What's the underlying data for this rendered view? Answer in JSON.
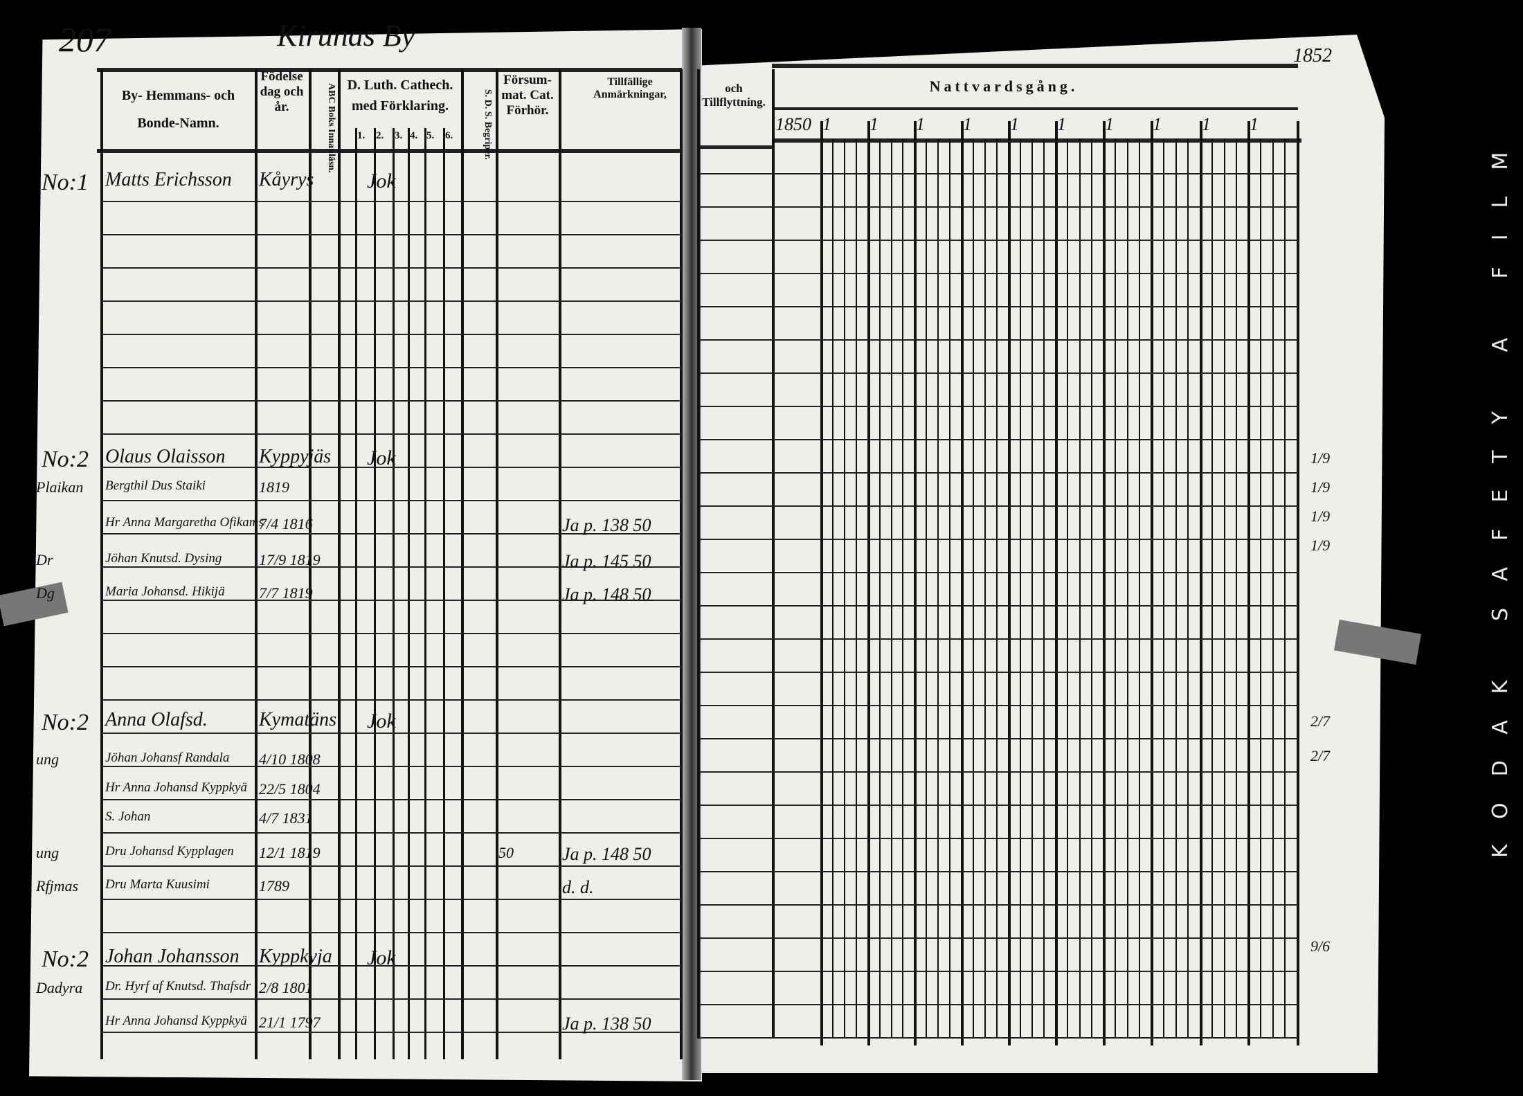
{
  "header": {
    "page_number": "207",
    "village_title": "Kirunas By",
    "year_note": "1852"
  },
  "columns": {
    "name": "By- Hemmans- och Bonde-Namn.",
    "birth": "Födelse dag och år.",
    "abc": "ABC Boks Innanläsn.",
    "catechism": "D. Luth. Cathech. med Förklaring.",
    "catechism_sub": [
      "1.",
      "2.",
      "3.",
      "4.",
      "5.",
      "6."
    ],
    "sds": "S. D. S. Begriper.",
    "missed": "Försum-mat. Cat. Förhör.",
    "moves": "Tillfällige Anmärkningar,",
    "moves_right": "och Tillflyttning.",
    "communion": "Nattvardsgång.",
    "communion_years": [
      "1850",
      "1",
      "1",
      "1",
      "1",
      "1",
      "1",
      "1",
      "1",
      "1",
      "1"
    ]
  },
  "entries": [
    {
      "no": "No:1",
      "margin": "",
      "name": "Matts Erichsson",
      "birth": "Kåyrys",
      "mark": "Jok",
      "note": ""
    },
    {
      "no": "No:2",
      "margin": "",
      "name": "Olaus Olaisson",
      "birth": "Kyppyjäs",
      "mark": "Jok",
      "note": ""
    },
    {
      "no": "",
      "margin": "Plaikan",
      "name": "Bergthil Dus Staiki",
      "birth": "1819",
      "mark": "",
      "note": ""
    },
    {
      "no": "",
      "margin": "",
      "name": "Hr Anna Margaretha Ofikams",
      "birth": "7/4 1816",
      "mark": "",
      "note": "Ja p. 138 50"
    },
    {
      "no": "",
      "margin": "Dr",
      "name": "Jöhan Knutsd. Dysing",
      "birth": "17/9 1819",
      "mark": "",
      "note": "Ja p. 145 50"
    },
    {
      "no": "",
      "margin": "Dg",
      "name": "Maria Johansd. Hikijä",
      "birth": "7/7 1819",
      "mark": "",
      "note": "Ja p. 148 50"
    },
    {
      "no": "No:2",
      "margin": "",
      "name": "Anna Olafsd.",
      "birth": "Kymatäns",
      "mark": "Jok",
      "note": ""
    },
    {
      "no": "",
      "margin": "ung",
      "name": "Jöhan Johansf Randala",
      "birth": "4/10 1808",
      "mark": "",
      "note": ""
    },
    {
      "no": "",
      "margin": "",
      "name": "Hr Anna Johansd Kyppkyä",
      "birth": "22/5 1804",
      "mark": "",
      "note": ""
    },
    {
      "no": "",
      "margin": "",
      "name": "S. Johan",
      "birth": "4/7 1831",
      "mark": "",
      "note": ""
    },
    {
      "no": "",
      "margin": "ung",
      "name": "Dru Johansd Kypplagen",
      "birth": "12/1 1819",
      "mark": "50",
      "note": "Ja p. 148 50"
    },
    {
      "no": "",
      "margin": "Rfjmas",
      "name": "Dru Marta Kuusimi",
      "birth": "1789",
      "mark": "",
      "note": "d. d."
    },
    {
      "no": "No:2",
      "margin": "",
      "name": "Johan Johansson",
      "birth": "Kyppkyja",
      "mark": "Jok",
      "note": ""
    },
    {
      "no": "",
      "margin": "Dadyra",
      "name": "Dr. Hyrf af Knutsd. Thafsdr",
      "birth": "2/8 1801",
      "mark": "",
      "note": ""
    },
    {
      "no": "",
      "margin": "",
      "name": "Hr Anna Johansd Kyppkyä",
      "birth": "21/1 1797",
      "mark": "",
      "note": "Ja p. 138 50"
    }
  ],
  "right_margin_marks": [
    "1/9",
    "1/9",
    "1/9",
    "1/9",
    "2/7",
    "2/7",
    "9/6"
  ],
  "film_edge": "KODAK SAFETY A FILM"
}
